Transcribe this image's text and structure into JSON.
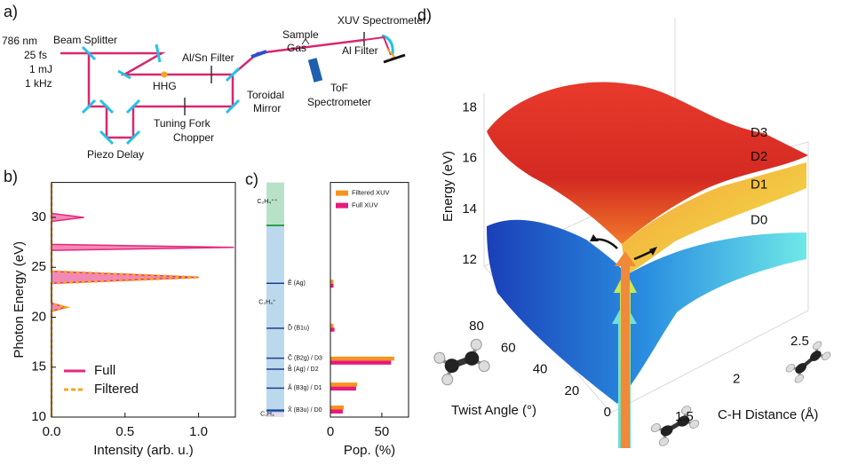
{
  "panel_labels": [
    "a)",
    "b)",
    "c)",
    "d)"
  ],
  "setup": {
    "laser": [
      "786 nm",
      "25 fs",
      "1 mJ",
      "1 kHz"
    ],
    "beam_splitter": "Beam Splitter",
    "hhg": "HHG",
    "al_sn_filter": "Al/Sn Filter",
    "sample_gas": [
      "Sample",
      "Gas"
    ],
    "xuv_spectrometer": "XUV Spectrometer",
    "al_filter": "Al Filter",
    "toroidal_mirror": [
      "Toroidal",
      "Mirror"
    ],
    "tof_spectrometer": [
      "ToF",
      "Spectrometer"
    ],
    "chopper": [
      "Tuning Fork",
      "Chopper"
    ],
    "piezo_delay": "Piezo Delay"
  },
  "chart_data": [
    {
      "type": "area",
      "orientation": "horizontal",
      "xlabel": "Intensity (arb. u.)",
      "ylabel": "Photon Energy (eV)",
      "y": [
        10,
        20.6,
        21,
        21.4,
        23.4,
        24,
        24.6,
        26.7,
        27,
        27.3,
        29.6,
        30,
        30.4,
        33.5
      ],
      "series": [
        {
          "name": "Full",
          "color": "#e6287a",
          "values": [
            0,
            0,
            0.1,
            0,
            0,
            1.0,
            0,
            0,
            1.24,
            0,
            0,
            0.22,
            0,
            0
          ]
        },
        {
          "name": "Filtered",
          "color": "#f5a623",
          "dashed": true,
          "values": [
            0,
            0,
            0.1,
            0,
            0,
            1.0,
            0,
            0,
            0,
            0,
            0,
            0,
            0,
            0
          ]
        }
      ],
      "xlim": [
        0,
        1.25
      ],
      "xticks": [
        {
          "value": 0,
          "label": "0.0"
        },
        0.5,
        {
          "value": 1,
          "label": "1.0"
        }
      ],
      "ylim": [
        10,
        33.5
      ],
      "yticks": [
        10,
        15,
        20,
        25,
        30
      ],
      "legend": "lower left"
    },
    {
      "type": "levels",
      "ylim": [
        10,
        33.5
      ],
      "regions": [
        {
          "label": "C₂H₄",
          "from": 10,
          "to": 10.6,
          "color": "#e6dcf0",
          "text_color": "#9a82c8",
          "label_at": 10.3
        },
        {
          "label": "C₂H₄⁺",
          "from": 10.6,
          "to": 29.2,
          "color": "#bcd8ec",
          "text_color": "#2a72b8",
          "label_at": 21.5
        },
        {
          "label": "C₂H₄⁺⁺",
          "from": 29.2,
          "to": 33.5,
          "color": "#b8e2c8",
          "text_color": "#2aa34a",
          "label_at": 31.6
        }
      ],
      "levels": [
        {
          "energy": 10.7,
          "label": "X̃ (B3u) / D0"
        },
        {
          "energy": 12.9,
          "label": "Ã (B3g) / D1"
        },
        {
          "energy": 14.8,
          "label": "B̃ (Ag) / D2"
        },
        {
          "energy": 15.9,
          "label": "C̃ (B2g) / D3"
        },
        {
          "energy": 18.9,
          "label": "D̃ (B1u)"
        },
        {
          "energy": 23.4,
          "label": "Ẽ (Ag)"
        }
      ]
    },
    {
      "type": "bar",
      "orientation": "horizontal",
      "xlabel": "Pop. (%)",
      "y": [
        10.8,
        13.1,
        15.7,
        19.0,
        23.4
      ],
      "series": [
        {
          "name": "Filtered XUV",
          "color": "#f7941d",
          "values": [
            13,
            26,
            62,
            3,
            3
          ]
        },
        {
          "name": "Full XUV",
          "color": "#e8197b",
          "values": [
            12,
            25,
            59,
            4,
            3
          ]
        }
      ],
      "xlim": [
        0,
        76
      ],
      "xticks": [
        0,
        50
      ],
      "ylim": [
        10,
        33.5
      ],
      "legend": "upper right"
    }
  ],
  "surface": {
    "zlabel": "Energy (eV)",
    "xlabel": "Twist Angle (°)",
    "ylabel": "C-H Distance (Å)",
    "zticks": [
      12,
      14,
      16,
      18
    ],
    "xticks": [
      0,
      20,
      40,
      60,
      80
    ],
    "yticks": [
      1.5,
      2,
      2.5
    ],
    "states": [
      {
        "label": "D3",
        "energy": 17.0
      },
      {
        "label": "D2",
        "energy": 16.05
      },
      {
        "label": "D1",
        "energy": 14.95
      },
      {
        "label": "D0",
        "energy": 13.55
      }
    ]
  }
}
